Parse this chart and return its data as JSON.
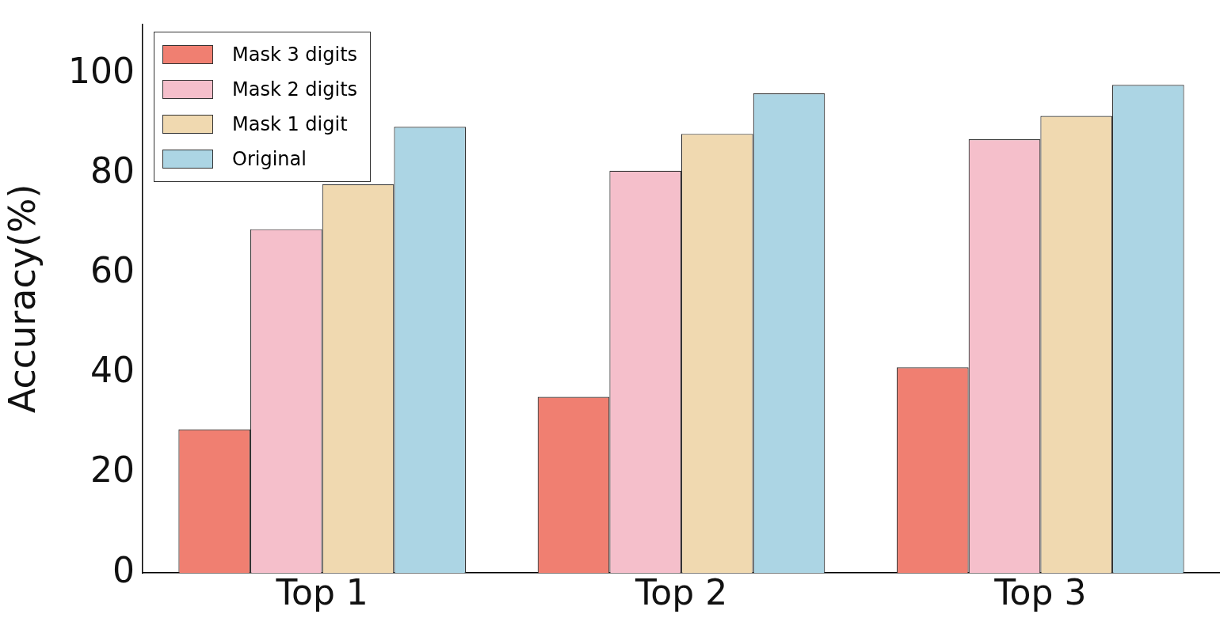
{
  "chart_data": {
    "type": "bar",
    "ylabel": "Accuracy(%)",
    "categories": [
      "Top 1",
      "Top 2",
      "Top 3"
    ],
    "series": [
      {
        "name": "Mask 3 digits",
        "color": "#f07f71",
        "values": [
          28.8,
          35.3,
          41.2
        ]
      },
      {
        "name": "Mask 2 digits",
        "color": "#f5bfcb",
        "values": [
          68.9,
          80.6,
          86.9
        ]
      },
      {
        "name": "Mask 1 digit",
        "color": "#f0d9b0",
        "values": [
          77.9,
          88.0,
          91.6
        ]
      },
      {
        "name": "Original",
        "color": "#acd5e4",
        "values": [
          89.4,
          96.1,
          97.8
        ]
      }
    ],
    "ylim": [
      0,
      110
    ],
    "yticks": [
      0,
      20,
      40,
      60,
      80,
      100
    ],
    "grid": false,
    "legend": "top left"
  }
}
